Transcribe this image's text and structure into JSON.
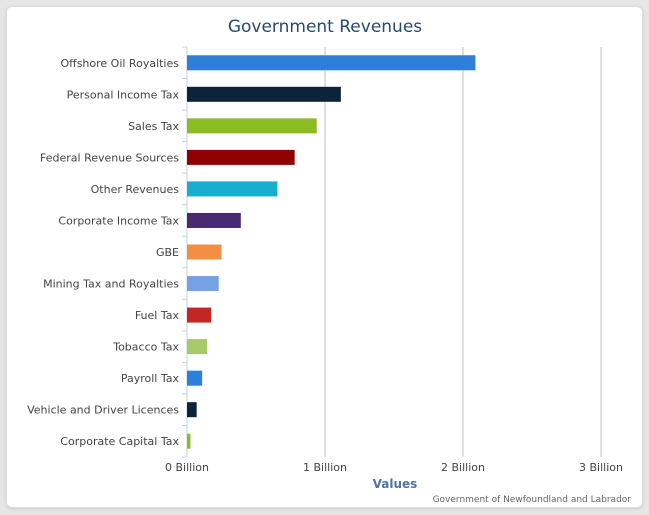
{
  "chart_data": {
    "type": "bar",
    "orientation": "horizontal",
    "title": "Government Revenues",
    "xlabel": "Values",
    "credits": "Government of Newfoundland and Labrador",
    "xlim": [
      0,
      3000000000
    ],
    "tick_values": [
      0,
      1000000000,
      2000000000,
      3000000000
    ],
    "tick_labels": [
      "0 Billion",
      "1 Billion",
      "2 Billion",
      "3 Billion"
    ],
    "grid": true,
    "categories": [
      "Offshore Oil Royalties",
      "Personal Income Tax",
      "Sales Tax",
      "Federal Revenue Sources",
      "Other Revenues",
      "Corporate Income Tax",
      "GBE",
      "Mining Tax and Royalties",
      "Fuel Tax",
      "Tobacco Tax",
      "Payroll Tax",
      "Vehicle and Driver Licences",
      "Corporate Capital Tax"
    ],
    "values": [
      2090000000,
      1115000000,
      940000000,
      780000000,
      655000000,
      390000000,
      250000000,
      230000000,
      175000000,
      145000000,
      110000000,
      70000000,
      25000000
    ],
    "colors": [
      "#2f7ed8",
      "#0d233a",
      "#8bbc21",
      "#910000",
      "#1aadce",
      "#492970",
      "#f28f43",
      "#77a1e5",
      "#c42525",
      "#a6c96a",
      "#2f7ed8",
      "#0d233a",
      "#8bbc21"
    ]
  }
}
